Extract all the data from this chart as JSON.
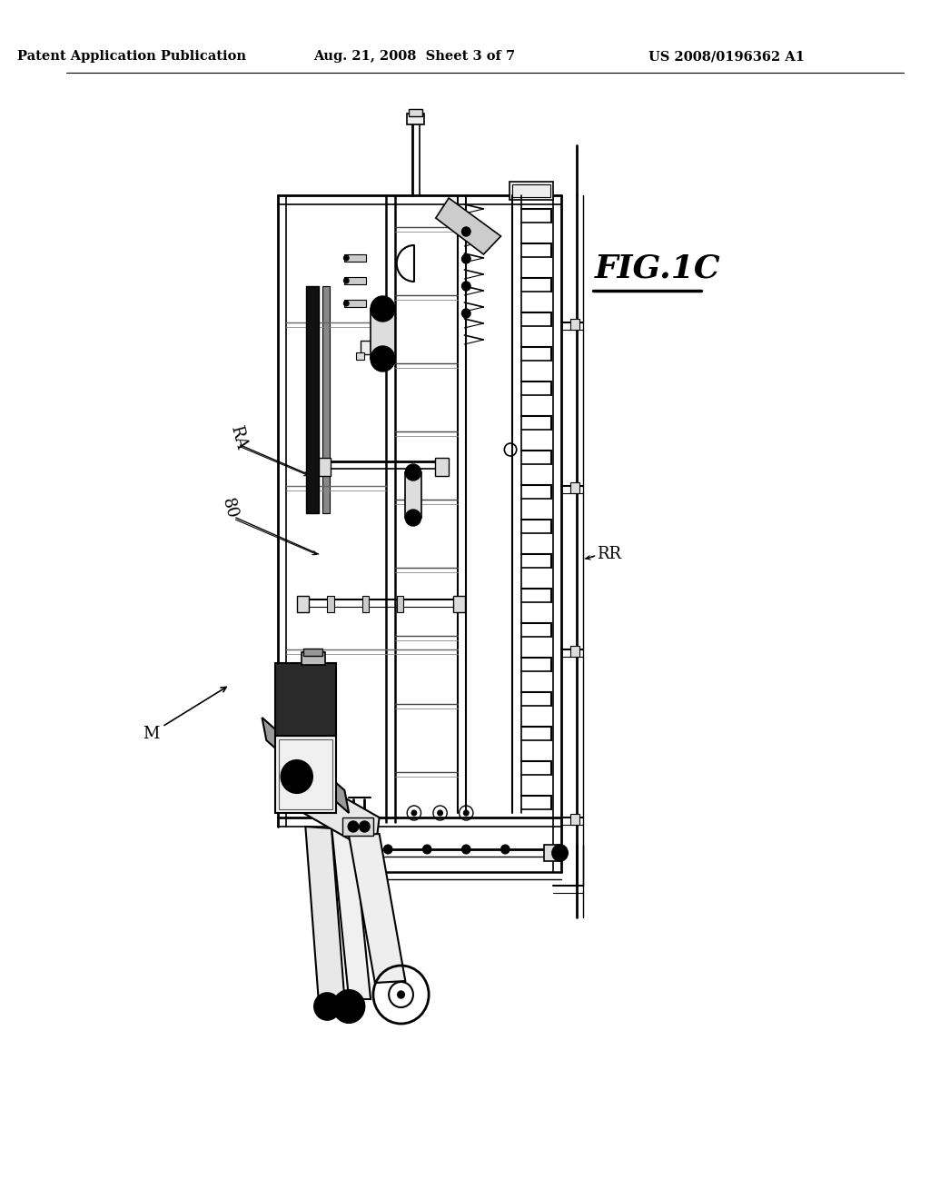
{
  "background_color": "#ffffff",
  "header_left": "Patent Application Publication",
  "header_center": "Aug. 21, 2008  Sheet 3 of 7",
  "header_right": "US 2008/0196362 A1",
  "fig_label": "FIG.1C",
  "label_RA": "RA",
  "label_80": "80",
  "label_M": "M",
  "label_RR": "RR",
  "header_fontsize": 10.5,
  "label_fontsize": 13,
  "fig_fontsize": 26
}
